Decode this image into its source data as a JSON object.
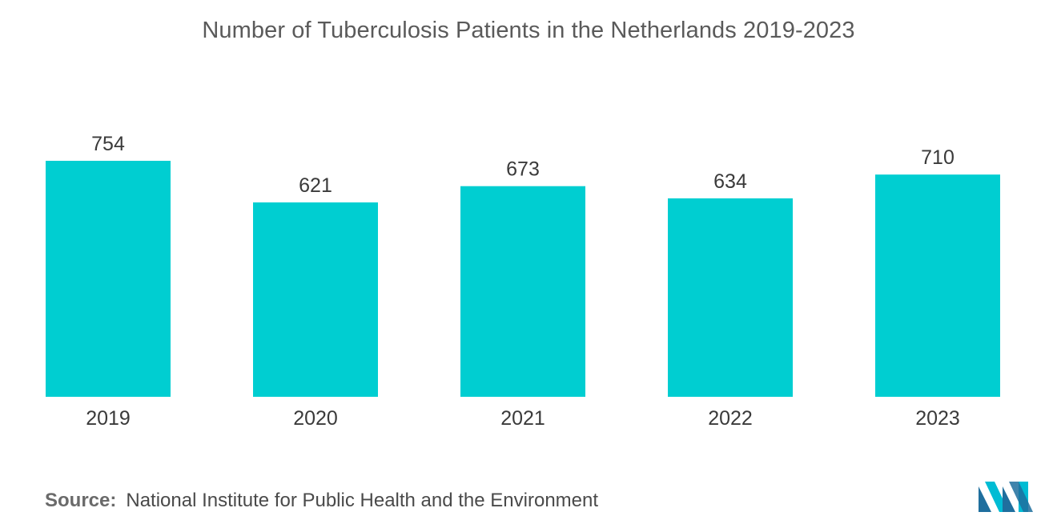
{
  "chart_data": {
    "type": "bar",
    "title": "Number of Tuberculosis Patients in the Netherlands 2019-2023",
    "categories": [
      "2019",
      "2020",
      "2021",
      "2022",
      "2023"
    ],
    "values": [
      754,
      621,
      673,
      634,
      710
    ],
    "ylim": [
      0,
      754
    ],
    "grid": false,
    "bar_color": "#00ced1"
  },
  "source": {
    "label": "Source:",
    "text": "National Institute for Public Health and the Environment"
  },
  "logo": {
    "icon": "mordor-intelligence-logo-icon",
    "colors": [
      "#1f6f9e",
      "#00bcd4"
    ]
  }
}
